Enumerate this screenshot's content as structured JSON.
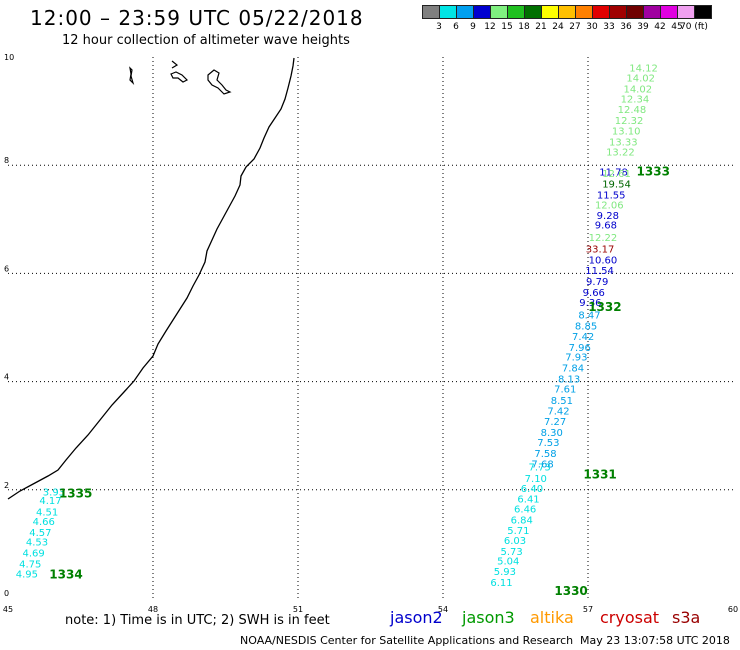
{
  "header": {
    "title": "12:00 – 23:59 UTC 05/22/2018",
    "subtitle": "12 hour collection of altimeter wave heights"
  },
  "color_scale": {
    "labels": [
      "3",
      "6",
      "9",
      "12",
      "15",
      "18",
      "21",
      "24",
      "27",
      "30",
      "33",
      "36",
      "39",
      "42",
      "45",
      "70 (ft)"
    ],
    "colors": [
      "#808080",
      "#00e5e5",
      "#00a0f0",
      "#0000d0",
      "#80f080",
      "#20c020",
      "#007000",
      "#ffff00",
      "#ffc000",
      "#ff8000",
      "#e00000",
      "#a00000",
      "#700000",
      "#a000a0",
      "#e000e0",
      "#f0a0f0",
      "#000000"
    ]
  },
  "footer": {
    "note": "note: 1) Time is in UTC; 2) SWH is in feet",
    "satellites": [
      {
        "name": "jason2",
        "color": "#0000cc"
      },
      {
        "name": "jason3",
        "color": "#009900"
      },
      {
        "name": "altika",
        "color": "#ff9900"
      },
      {
        "name": "cryosat",
        "color": "#cc0000"
      },
      {
        "name": "s3a",
        "color": "#990000"
      }
    ],
    "credit": "NOAA/NESDIS Center for Satellite Applications and Research",
    "timestamp": "May 23 13:07:58 UTC 2018"
  },
  "chart_data": {
    "type": "scatter",
    "title": "12:00 – 23:59 UTC 05/22/2018",
    "subtitle": "12 hour collection of altimeter wave heights",
    "x_ticks": [
      45,
      48,
      51,
      54,
      57,
      60
    ],
    "y_ticks": [
      0,
      2,
      4,
      6,
      8,
      10
    ],
    "xlim": [
      45,
      60
    ],
    "ylim": [
      0,
      10
    ],
    "grid": true,
    "time_labels": [
      {
        "label": "1335",
        "x": 46.4,
        "y": 1.95
      },
      {
        "label": "1334",
        "x": 46.2,
        "y": 0.45
      },
      {
        "label": "1333",
        "x": 58.35,
        "y": 7.9
      },
      {
        "label": "1332",
        "x": 57.35,
        "y": 5.4
      },
      {
        "label": "1331",
        "x": 57.25,
        "y": 2.3
      },
      {
        "label": "1330",
        "x": 56.65,
        "y": 0.15
      }
    ],
    "series": [
      {
        "color": "#00e0e0",
        "points": [
          {
            "x": 45.95,
            "y": 1.97,
            "v": "3.93"
          },
          {
            "x": 45.88,
            "y": 1.81,
            "v": "4.17"
          },
          {
            "x": 45.81,
            "y": 1.6,
            "v": "4.51"
          },
          {
            "x": 45.74,
            "y": 1.42,
            "v": "4.66"
          },
          {
            "x": 45.67,
            "y": 1.22,
            "v": "4.57"
          },
          {
            "x": 45.6,
            "y": 1.04,
            "v": "4.53"
          },
          {
            "x": 45.53,
            "y": 0.84,
            "v": "4.69"
          },
          {
            "x": 45.46,
            "y": 0.64,
            "v": "4.75"
          },
          {
            "x": 45.39,
            "y": 0.45,
            "v": "4.95"
          }
        ]
      },
      {
        "color": "#00e0e0",
        "points": [
          {
            "x": 56.0,
            "y": 2.43,
            "v": "7.73"
          },
          {
            "x": 55.92,
            "y": 2.22,
            "v": "7.10"
          },
          {
            "x": 55.84,
            "y": 2.03,
            "v": "6.40"
          },
          {
            "x": 55.77,
            "y": 1.84,
            "v": "6.41"
          },
          {
            "x": 55.7,
            "y": 1.65,
            "v": "6.46"
          },
          {
            "x": 55.63,
            "y": 1.45,
            "v": "6.84"
          },
          {
            "x": 55.56,
            "y": 1.26,
            "v": "5.71"
          },
          {
            "x": 55.49,
            "y": 1.07,
            "v": "6.03"
          },
          {
            "x": 55.42,
            "y": 0.87,
            "v": "5.73"
          },
          {
            "x": 55.35,
            "y": 0.69,
            "v": "5.04"
          },
          {
            "x": 55.28,
            "y": 0.5,
            "v": "5.93"
          },
          {
            "x": 55.21,
            "y": 0.3,
            "v": "6.11"
          }
        ]
      },
      {
        "color": "#00a0e6",
        "points": [
          {
            "x": 57.03,
            "y": 5.24,
            "v": "8.47"
          },
          {
            "x": 56.96,
            "y": 5.04,
            "v": "8.85"
          },
          {
            "x": 56.9,
            "y": 4.84,
            "v": "7.42"
          },
          {
            "x": 56.83,
            "y": 4.64,
            "v": "7.96"
          },
          {
            "x": 56.76,
            "y": 4.46,
            "v": "7.93"
          },
          {
            "x": 56.69,
            "y": 4.26,
            "v": "7.84"
          },
          {
            "x": 56.61,
            "y": 4.06,
            "v": "8.13"
          },
          {
            "x": 56.53,
            "y": 3.87,
            "v": "7.61"
          },
          {
            "x": 56.46,
            "y": 3.66,
            "v": "8.51"
          },
          {
            "x": 56.39,
            "y": 3.47,
            "v": "7.42"
          },
          {
            "x": 56.32,
            "y": 3.27,
            "v": "7.27"
          },
          {
            "x": 56.25,
            "y": 3.07,
            "v": "8.30"
          },
          {
            "x": 56.18,
            "y": 2.88,
            "v": "7.53"
          },
          {
            "x": 56.12,
            "y": 2.68,
            "v": "7.58"
          },
          {
            "x": 56.06,
            "y": 2.49,
            "v": "7.68"
          }
        ]
      },
      {
        "color": "#0000cc",
        "points": [
          {
            "x": 57.53,
            "y": 7.88,
            "v": "11.78"
          },
          {
            "x": 57.48,
            "y": 7.46,
            "v": "11.55"
          },
          {
            "x": 57.41,
            "y": 7.08,
            "v": "9.28"
          },
          {
            "x": 57.37,
            "y": 6.9,
            "v": "9.68"
          },
          {
            "x": 57.31,
            "y": 6.26,
            "v": "10.60"
          },
          {
            "x": 57.24,
            "y": 6.06,
            "v": "11.54"
          },
          {
            "x": 57.19,
            "y": 5.86,
            "v": "9.79"
          },
          {
            "x": 57.12,
            "y": 5.66,
            "v": "9.66"
          },
          {
            "x": 57.05,
            "y": 5.47,
            "v": "9.36"
          }
        ]
      },
      {
        "color": "#006600",
        "points": [
          {
            "x": 57.59,
            "y": 7.66,
            "v": "19.54"
          }
        ]
      },
      {
        "color": "#80e880",
        "points": [
          {
            "x": 58.15,
            "y": 9.81,
            "v": "14.12"
          },
          {
            "x": 58.09,
            "y": 9.62,
            "v": "14.02"
          },
          {
            "x": 58.03,
            "y": 9.42,
            "v": "14.02"
          },
          {
            "x": 57.97,
            "y": 9.23,
            "v": "12.34"
          },
          {
            "x": 57.91,
            "y": 9.04,
            "v": "12.48"
          },
          {
            "x": 57.85,
            "y": 8.84,
            "v": "12.32"
          },
          {
            "x": 57.79,
            "y": 8.64,
            "v": "13.10"
          },
          {
            "x": 57.73,
            "y": 8.44,
            "v": "13.33"
          },
          {
            "x": 57.67,
            "y": 8.25,
            "v": "13.22"
          },
          {
            "x": 57.59,
            "y": 7.86,
            "v": "12.61"
          },
          {
            "x": 57.44,
            "y": 7.27,
            "v": "12.06"
          },
          {
            "x": 57.31,
            "y": 6.67,
            "v": "12.22"
          }
        ]
      },
      {
        "color": "#990000",
        "points": [
          {
            "x": 57.25,
            "y": 6.46,
            "v": "33.17"
          }
        ]
      }
    ]
  }
}
